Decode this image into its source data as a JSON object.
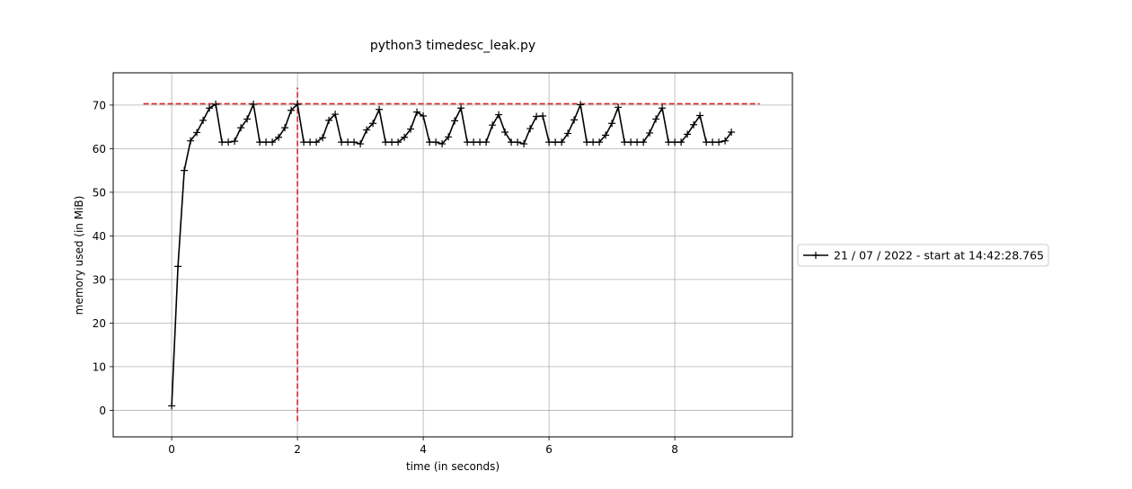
{
  "chart_data": {
    "type": "line",
    "title": "python3 timedesc_leak.py",
    "xlabel": "time (in seconds)",
    "ylabel": "memory used (in MiB)",
    "xlim": [
      -0.93,
      9.87
    ],
    "ylim": [
      -6.1,
      77.4
    ],
    "x_ticks": [
      0,
      2,
      4,
      6,
      8
    ],
    "y_ticks": [
      0,
      10,
      20,
      30,
      40,
      50,
      60,
      70
    ],
    "grid": true,
    "legend_position": "right",
    "series": [
      {
        "name": "21 / 07 / 2022 - start at 14:42:28.765",
        "color": "#000000",
        "marker": "plus",
        "x": [
          0.0,
          0.1,
          0.2,
          0.3,
          0.4,
          0.5,
          0.6,
          0.7,
          0.8,
          0.9,
          1.0,
          1.1,
          1.2,
          1.3,
          1.4,
          1.5,
          1.6,
          1.7,
          1.8,
          1.9,
          2.0,
          2.1,
          2.2,
          2.3,
          2.4,
          2.5,
          2.6,
          2.7,
          2.8,
          2.9,
          3.0,
          3.1,
          3.2,
          3.3,
          3.4,
          3.5,
          3.6,
          3.7,
          3.8,
          3.9,
          4.0,
          4.1,
          4.2,
          4.3,
          4.4,
          4.5,
          4.6,
          4.7,
          4.8,
          4.9,
          5.0,
          5.1,
          5.2,
          5.3,
          5.4,
          5.5,
          5.6,
          5.7,
          5.8,
          5.9,
          6.0,
          6.1,
          6.2,
          6.3,
          6.4,
          6.5,
          6.6,
          6.7,
          6.8,
          6.9,
          7.0,
          7.1,
          7.2,
          7.3,
          7.4,
          7.5,
          7.6,
          7.7,
          7.8,
          7.9,
          8.0,
          8.1,
          8.2,
          8.3,
          8.4,
          8.5,
          8.6,
          8.7,
          8.8,
          8.9
        ],
        "y": [
          1.0,
          33.0,
          55.0,
          61.8,
          63.7,
          66.5,
          69.3,
          70.2,
          61.5,
          61.5,
          61.7,
          64.8,
          66.8,
          70.2,
          61.5,
          61.5,
          61.5,
          62.6,
          64.8,
          68.8,
          70.2,
          61.5,
          61.5,
          61.5,
          62.5,
          66.5,
          67.9,
          61.5,
          61.5,
          61.5,
          61.1,
          64.3,
          65.8,
          69.0,
          61.5,
          61.5,
          61.5,
          62.6,
          64.5,
          68.4,
          67.5,
          61.5,
          61.5,
          61.1,
          62.7,
          66.4,
          69.3,
          61.5,
          61.5,
          61.5,
          61.5,
          65.4,
          67.8,
          63.8,
          61.5,
          61.5,
          61.1,
          64.6,
          67.4,
          67.5,
          61.5,
          61.5,
          61.5,
          63.5,
          66.6,
          70.1,
          61.5,
          61.5,
          61.5,
          63.1,
          65.8,
          69.5,
          61.5,
          61.5,
          61.5,
          61.5,
          63.6,
          66.8,
          69.3,
          61.5,
          61.5,
          61.5,
          63.3,
          65.5,
          67.6,
          61.5,
          61.5,
          61.5,
          61.8,
          63.8
        ]
      }
    ],
    "reference_lines": [
      {
        "orientation": "horizontal",
        "y": 70.3,
        "x_range": [
          -0.45,
          9.35
        ],
        "color": "#d62728",
        "style": "dashed"
      },
      {
        "orientation": "vertical",
        "x": 2.0,
        "y_range": [
          -2.5,
          74.0
        ],
        "color": "#d62728",
        "style": "dashed"
      }
    ]
  }
}
